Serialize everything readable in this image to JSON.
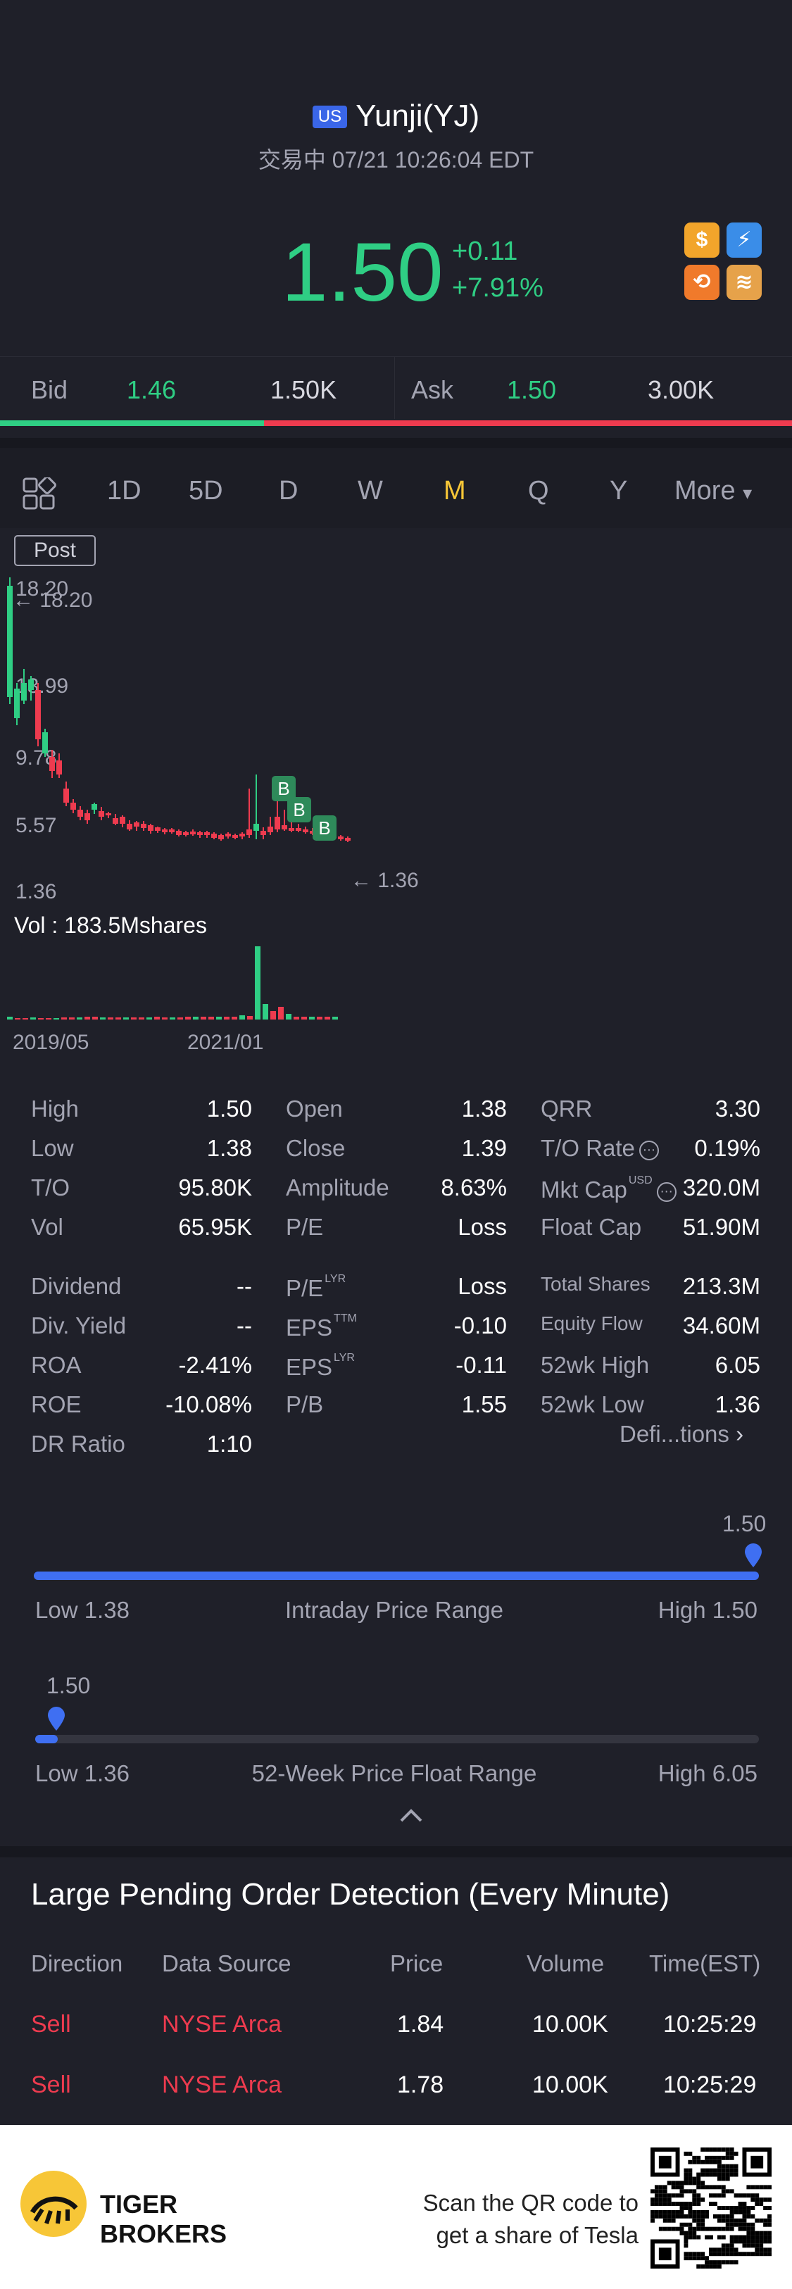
{
  "header": {
    "market_badge": "US",
    "title": "Yunji(YJ)",
    "status_line": "交易中 07/21 10:26:04 EDT",
    "price": "1.50",
    "change": "+0.11",
    "change_pct": "+7.91%",
    "badges": [
      "dollar-badge",
      "lightning-badge",
      "options-badge",
      "stack-badge"
    ]
  },
  "bid_ask": {
    "bid_label": "Bid",
    "bid_price": "1.46",
    "bid_size": "1.50K",
    "ask_label": "Ask",
    "ask_price": "1.50",
    "ask_size": "3.00K",
    "bid_fraction": 0.333
  },
  "tabs": {
    "items": [
      "1D",
      "5D",
      "D",
      "W",
      "M",
      "Q",
      "Y",
      "More"
    ],
    "active": "M"
  },
  "chart": {
    "post_label": "Post",
    "y_labels": [
      "18.20",
      "13.99",
      "9.78",
      "5.57",
      "1.36"
    ],
    "high_marker": "18.20",
    "low_marker": "1.36",
    "buy_marker": "B",
    "volume_label": "Vol  : 183.5Mshares",
    "x_labels": [
      "2019/05",
      "2021/01"
    ],
    "colors": {
      "up": "#2fce84",
      "down": "#ee3b4f"
    }
  },
  "stats": {
    "col1": [
      {
        "label": "High",
        "value": "1.50"
      },
      {
        "label": "Low",
        "value": "1.38"
      },
      {
        "label": "T/O",
        "value": "95.80K"
      },
      {
        "label": "Vol",
        "value": "65.95K"
      },
      {
        "label": "Dividend",
        "value": "--"
      },
      {
        "label": "Div. Yield",
        "value": "--"
      },
      {
        "label": "ROA",
        "value": "-2.41%"
      },
      {
        "label": "ROE",
        "value": "-10.08%"
      },
      {
        "label": "DR Ratio",
        "value": "1:10"
      }
    ],
    "col2": [
      {
        "label": "Open",
        "value": "1.38"
      },
      {
        "label": "Close",
        "value": "1.39"
      },
      {
        "label": "Amplitude",
        "value": "8.63%"
      },
      {
        "label": "P/E",
        "value": "Loss"
      },
      {
        "label": "P/E",
        "sup": "LYR",
        "value": "Loss"
      },
      {
        "label": "EPS",
        "sup": "TTM",
        "value": "-0.10"
      },
      {
        "label": "EPS",
        "sup": "LYR",
        "value": "-0.11"
      },
      {
        "label": "P/B",
        "value": "1.55"
      }
    ],
    "col3": [
      {
        "label": "QRR",
        "value": "3.30"
      },
      {
        "label": "T/O Rate",
        "value": "0.19%"
      },
      {
        "label": "Mkt Cap",
        "sup": "USD",
        "value": "320.0M"
      },
      {
        "label": "Float Cap",
        "value": "51.90M"
      },
      {
        "label": "Total Shares",
        "value": "213.3M"
      },
      {
        "label": "Equity Flow",
        "value": "34.60M"
      },
      {
        "label": "52wk High",
        "value": "6.05"
      },
      {
        "label": "52wk Low",
        "value": "1.36"
      }
    ],
    "definitions_link": "Defi...tions"
  },
  "intraday_range": {
    "current": "1.50",
    "low_label": "Low 1.38",
    "title": "Intraday Price Range",
    "high_label": "High 1.50",
    "position": 1.0
  },
  "week52_range": {
    "current": "1.50",
    "low_label": "Low 1.36",
    "title": "52-Week Price Float Range",
    "high_label": "High 6.05",
    "position": 0.03
  },
  "large_orders": {
    "title": "Large Pending Order Detection (Every Minute)",
    "headers": [
      "Direction",
      "Data Source",
      "Price",
      "Volume",
      "Time(EST)"
    ],
    "rows": [
      {
        "direction": "Sell",
        "source": "NYSE Arca",
        "price": "1.84",
        "volume": "10.00K",
        "time": "10:25:29"
      },
      {
        "direction": "Sell",
        "source": "NYSE Arca",
        "price": "1.78",
        "volume": "10.00K",
        "time": "10:25:29"
      }
    ]
  },
  "footer": {
    "brand_line1": "TIGER",
    "brand_line2": "BROKERS",
    "scan_line1": "Scan the QR code to",
    "scan_line2": "get a share of Tesla"
  }
}
